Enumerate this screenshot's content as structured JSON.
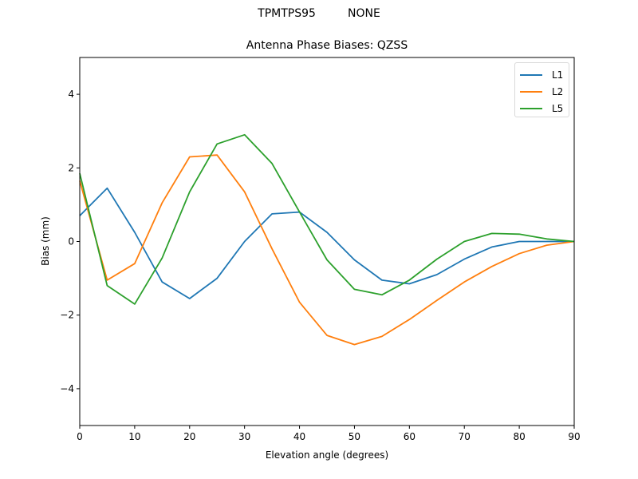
{
  "figure": {
    "suptitle": "TPMTPS95         NONE",
    "title": "Antenna Phase Biases: QZSS",
    "xlabel": "Elevation angle (degrees)",
    "ylabel": "Bias (mm)"
  },
  "axes": {
    "x_ticks": [
      "0",
      "10",
      "20",
      "30",
      "40",
      "50",
      "60",
      "70",
      "80",
      "90"
    ],
    "y_ticks": [
      "4",
      "2",
      "0",
      "−2",
      "−4"
    ]
  },
  "legend": {
    "items": [
      {
        "label": "L1",
        "color": "#1f77b4"
      },
      {
        "label": "L2",
        "color": "#ff7f0e"
      },
      {
        "label": "L5",
        "color": "#2ca02c"
      }
    ]
  },
  "chart_data": {
    "type": "line",
    "title": "Antenna Phase Biases: QZSS",
    "suptitle": "TPMTPS95         NONE",
    "xlabel": "Elevation angle (degrees)",
    "ylabel": "Bias (mm)",
    "xlim": [
      0,
      90
    ],
    "ylim": [
      -5,
      5
    ],
    "x_ticks": [
      0,
      10,
      20,
      30,
      40,
      50,
      60,
      70,
      80,
      90
    ],
    "y_ticks": [
      -4,
      -2,
      0,
      2,
      4
    ],
    "grid": false,
    "legend_position": "upper right",
    "x": [
      0,
      5,
      10,
      15,
      20,
      25,
      30,
      35,
      40,
      45,
      50,
      55,
      60,
      65,
      70,
      75,
      80,
      85,
      90
    ],
    "series": [
      {
        "name": "L1",
        "color": "#1f77b4",
        "values": [
          0.7,
          1.45,
          0.25,
          -1.1,
          -1.55,
          -1.0,
          0.0,
          0.75,
          0.8,
          0.25,
          -0.5,
          -1.05,
          -1.15,
          -0.9,
          -0.48,
          -0.15,
          0.0,
          0.0,
          0.0
        ]
      },
      {
        "name": "L2",
        "color": "#ff7f0e",
        "values": [
          1.65,
          -1.05,
          -0.6,
          1.05,
          2.3,
          2.35,
          1.35,
          -0.2,
          -1.65,
          -2.55,
          -2.8,
          -2.58,
          -2.12,
          -1.6,
          -1.1,
          -0.68,
          -0.33,
          -0.1,
          0.0
        ]
      },
      {
        "name": "L5",
        "color": "#2ca02c",
        "values": [
          1.85,
          -1.2,
          -1.7,
          -0.45,
          1.35,
          2.65,
          2.9,
          2.12,
          0.8,
          -0.5,
          -1.3,
          -1.45,
          -1.05,
          -0.48,
          0.0,
          0.22,
          0.2,
          0.07,
          0.0
        ]
      }
    ]
  }
}
